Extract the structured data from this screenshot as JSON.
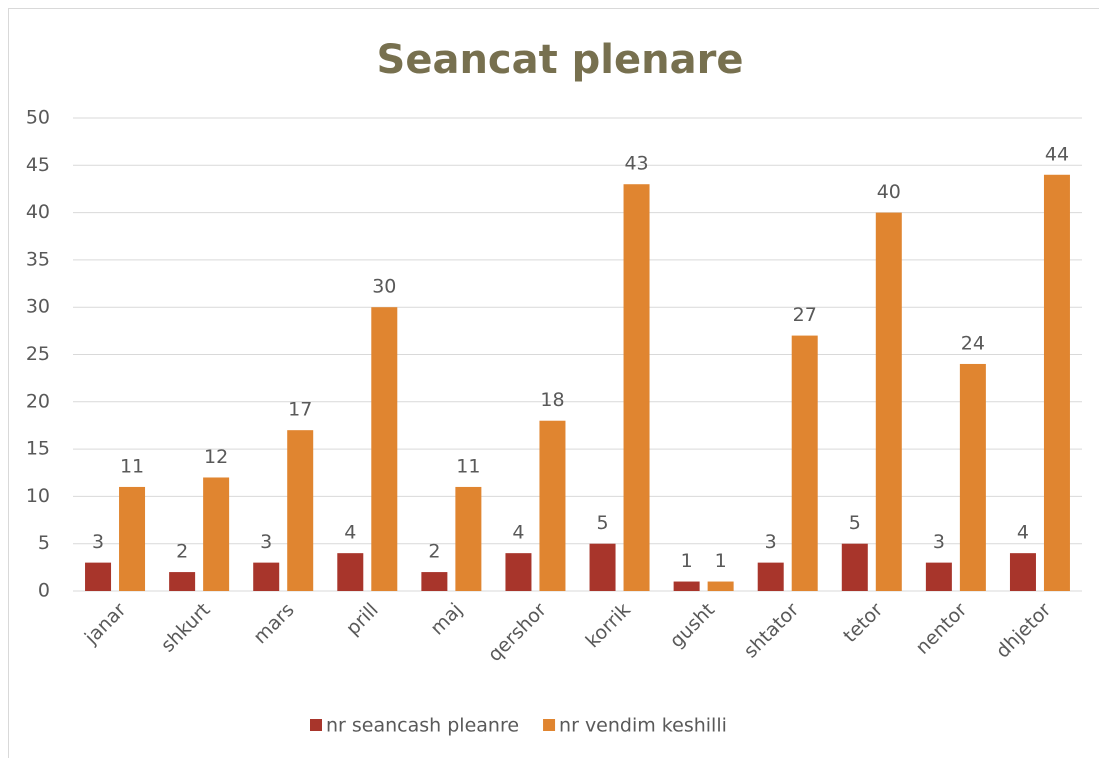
{
  "chart_data": {
    "type": "bar",
    "title": "Seancat plenare",
    "categories": [
      "janar",
      "shkurt",
      "mars",
      "prill",
      "maj",
      "qershor",
      "korrik",
      "gusht",
      "shtator",
      "tetor",
      "nentor",
      "dhjetor"
    ],
    "series": [
      {
        "name": "nr seancash pleanre",
        "color": "#a8352b",
        "values": [
          3,
          2,
          3,
          4,
          2,
          4,
          5,
          1,
          3,
          5,
          3,
          4
        ]
      },
      {
        "name": "nr vendim keshilli",
        "color": "#e08530",
        "values": [
          11,
          12,
          17,
          30,
          11,
          18,
          43,
          1,
          27,
          40,
          24,
          44
        ]
      }
    ],
    "ylim": [
      0,
      50
    ],
    "yticks": [
      0,
      5,
      10,
      15,
      20,
      25,
      30,
      35,
      40,
      45,
      50
    ],
    "grid": true,
    "legend": "bottom"
  }
}
